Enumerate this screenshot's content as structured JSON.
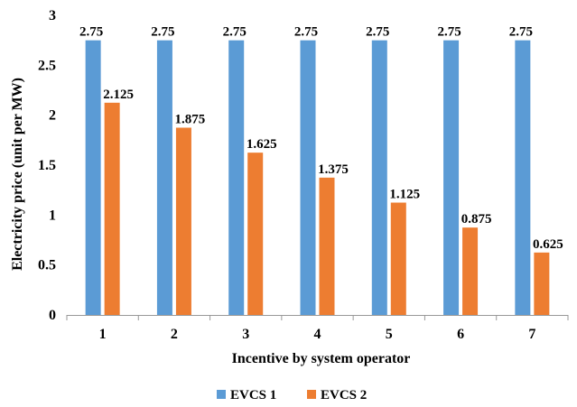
{
  "chart_data": {
    "type": "bar",
    "categories": [
      "1",
      "2",
      "3",
      "4",
      "5",
      "6",
      "7"
    ],
    "series": [
      {
        "name": "EVCS 1",
        "color": "#5b9bd5",
        "values": [
          2.75,
          2.75,
          2.75,
          2.75,
          2.75,
          2.75,
          2.75
        ],
        "labels": [
          "2.75",
          "2.75",
          "2.75",
          "2.75",
          "2.75",
          "2.75",
          "2.75"
        ]
      },
      {
        "name": "EVCS 2",
        "color": "#ed7d31",
        "values": [
          2.125,
          1.875,
          1.625,
          1.375,
          1.125,
          0.875,
          0.625
        ],
        "labels": [
          "2.125",
          "1.875",
          "1.625",
          "1.375",
          "1.125",
          "0.875",
          "0.625"
        ]
      }
    ],
    "xlabel": "Incentive by system operator",
    "ylabel": "Electricity price (unit per MW)",
    "ylim": [
      0,
      3
    ],
    "yticks": [
      "0",
      "0.5",
      "1",
      "1.5",
      "2",
      "2.5",
      "3"
    ],
    "grid": false,
    "legend": "bottom"
  }
}
